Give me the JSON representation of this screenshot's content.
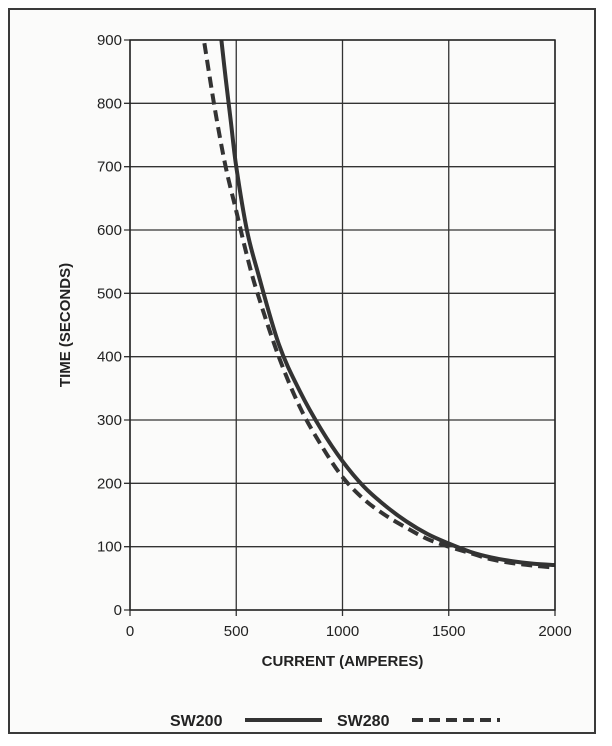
{
  "chart_data": {
    "type": "line",
    "title": "",
    "xlabel": "CURRENT (AMPERES)",
    "ylabel": "TIME (SECONDS)",
    "xlim": [
      0,
      2000
    ],
    "ylim": [
      0,
      900
    ],
    "xticks": [
      0,
      500,
      1000,
      1500,
      2000
    ],
    "yticks": [
      0,
      100,
      200,
      300,
      400,
      500,
      600,
      700,
      800,
      900
    ],
    "grid": true,
    "legend_position": "bottom",
    "series": [
      {
        "name": "SW200",
        "style": "solid",
        "color": "#333333",
        "points": [
          [
            430,
            900
          ],
          [
            450,
            840
          ],
          [
            475,
            770
          ],
          [
            500,
            700
          ],
          [
            550,
            600
          ],
          [
            600,
            535
          ],
          [
            700,
            420
          ],
          [
            800,
            345
          ],
          [
            900,
            285
          ],
          [
            1000,
            235
          ],
          [
            1100,
            195
          ],
          [
            1200,
            165
          ],
          [
            1300,
            140
          ],
          [
            1400,
            120
          ],
          [
            1500,
            105
          ],
          [
            1600,
            92
          ],
          [
            1700,
            83
          ],
          [
            1800,
            77
          ],
          [
            1900,
            73
          ],
          [
            2000,
            71
          ]
        ]
      },
      {
        "name": "SW280",
        "style": "dashed",
        "color": "#333333",
        "points": [
          [
            350,
            895
          ],
          [
            400,
            790
          ],
          [
            450,
            700
          ],
          [
            500,
            630
          ],
          [
            550,
            560
          ],
          [
            600,
            500
          ],
          [
            700,
            400
          ],
          [
            800,
            320
          ],
          [
            900,
            260
          ],
          [
            1000,
            210
          ],
          [
            1100,
            175
          ],
          [
            1200,
            150
          ],
          [
            1300,
            130
          ],
          [
            1400,
            112
          ],
          [
            1500,
            100
          ],
          [
            1600,
            90
          ],
          [
            1700,
            80
          ],
          [
            1800,
            74
          ],
          [
            1900,
            70
          ],
          [
            2000,
            67
          ]
        ]
      }
    ]
  }
}
